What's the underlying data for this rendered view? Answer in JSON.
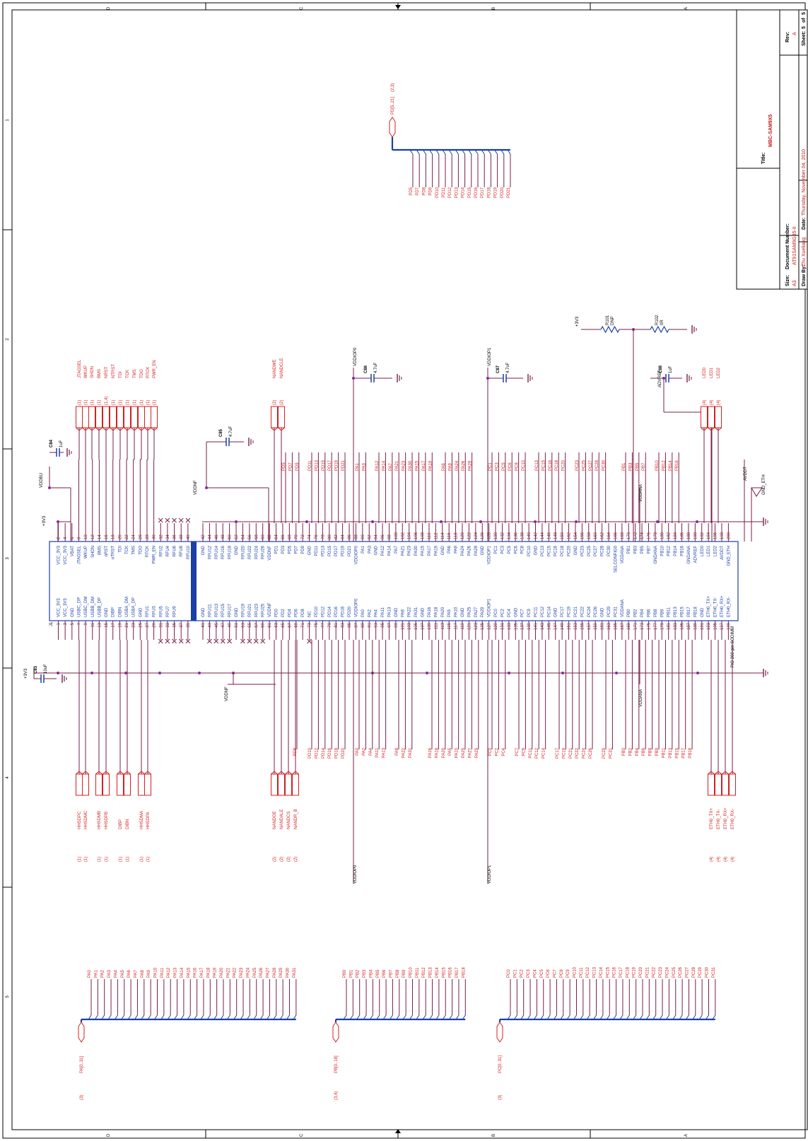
{
  "colors": {
    "frame": "#000000",
    "wire": "#7a1f4a",
    "label": "#d42020",
    "part": "#1a3fa6",
    "bus": "#1a3fa6",
    "junction": "#8a2a9a",
    "title_value": "#d42020"
  },
  "border": {
    "top_letters": [
      "D",
      "C",
      "B",
      "A"
    ],
    "bottom_letters": [
      "D",
      "C",
      "B",
      "A"
    ],
    "side_numbers": [
      "1",
      "2",
      "3",
      "4",
      "5"
    ]
  },
  "title_block": {
    "title_label": "Title:",
    "title_value": "MBC-SAM9X5",
    "size_label": "Size:",
    "size_value": "A3",
    "docnum_label": "Document Number:",
    "docnum_value": "AT91SAM9G45-II",
    "rev_label": "Rev:",
    "rev_value": "A",
    "drawby_label": "Draw By:",
    "drawby_value": "Zhu Xueliang",
    "date_label": "Date:",
    "date_value": "Thursday, November 04, 2010",
    "sheet_label": "Sheet:",
    "sheet_value": "5",
    "of_label": "of",
    "of_value": "5"
  },
  "connector": {
    "ref": "J1",
    "name": "PIO 200-pin SODIMM",
    "top_row": [
      {
        "pin": "2",
        "name": "VCC_3V3"
      },
      {
        "pin": "4",
        "name": "VCC_3V3"
      },
      {
        "pin": "6",
        "name": "VBAT"
      },
      {
        "pin": "8",
        "name": "JTAGSEL"
      },
      {
        "pin": "10",
        "name": "WKUP"
      },
      {
        "pin": "12",
        "name": "SHDN"
      },
      {
        "pin": "14",
        "name": "BMS"
      },
      {
        "pin": "16",
        "name": "nRST"
      },
      {
        "pin": "18",
        "name": "nTRST"
      },
      {
        "pin": "20",
        "name": "TDI"
      },
      {
        "pin": "22",
        "name": "TCK"
      },
      {
        "pin": "24",
        "name": "TMS"
      },
      {
        "pin": "26",
        "name": "TDO"
      },
      {
        "pin": "28",
        "name": "RTCK"
      },
      {
        "pin": "30",
        "name": "PWR_EN"
      },
      {
        "pin": "32",
        "name": "RFU2"
      },
      {
        "pin": "34",
        "name": "RFU4"
      },
      {
        "pin": "36",
        "name": "RFU6"
      },
      {
        "pin": "38",
        "name": "RFU8"
      },
      {
        "pin": "40",
        "name": "RFU10"
      },
      {
        "pin": "42",
        "name": "GND"
      },
      {
        "pin": "44",
        "name": "RFU12"
      },
      {
        "pin": "46",
        "name": "RFU14"
      },
      {
        "pin": "48",
        "name": "RFU16"
      },
      {
        "pin": "50",
        "name": "RFU18"
      },
      {
        "pin": "52",
        "name": "GND"
      },
      {
        "pin": "54",
        "name": "RFU20"
      },
      {
        "pin": "56",
        "name": "RFU22"
      },
      {
        "pin": "58",
        "name": "RFU24"
      },
      {
        "pin": "60",
        "name": "RFU26"
      },
      {
        "pin": "62",
        "name": "VDDNF"
      },
      {
        "pin": "64",
        "name": "PD1"
      },
      {
        "pin": "66",
        "name": "PD3"
      },
      {
        "pin": "68",
        "name": "PD5"
      },
      {
        "pin": "70",
        "name": "PD7"
      },
      {
        "pin": "72",
        "name": "PD9"
      },
      {
        "pin": "74",
        "name": "GND"
      },
      {
        "pin": "76",
        "name": "PD11"
      },
      {
        "pin": "78",
        "name": "PD13"
      },
      {
        "pin": "80",
        "name": "PD15"
      },
      {
        "pin": "82",
        "name": "PD17"
      },
      {
        "pin": "84",
        "name": "PD19"
      },
      {
        "pin": "86",
        "name": "PD21"
      },
      {
        "pin": "88",
        "name": "VDDIOP0"
      },
      {
        "pin": "90",
        "name": "PA1"
      },
      {
        "pin": "92",
        "name": "PA3"
      },
      {
        "pin": "94",
        "name": "GND"
      },
      {
        "pin": "96",
        "name": "PA12"
      },
      {
        "pin": "98",
        "name": "PA14"
      },
      {
        "pin": "100",
        "name": "PA7"
      },
      {
        "pin": "102",
        "name": "PA21"
      },
      {
        "pin": "104",
        "name": "PA23"
      },
      {
        "pin": "106",
        "name": "PA30"
      },
      {
        "pin": "108",
        "name": "PA15"
      },
      {
        "pin": "110",
        "name": "PA17"
      },
      {
        "pin": "112",
        "name": "PA19"
      },
      {
        "pin": "114",
        "name": "GND"
      },
      {
        "pin": "116",
        "name": "PA6"
      },
      {
        "pin": "118",
        "name": "PA9"
      },
      {
        "pin": "120",
        "name": "PA24"
      },
      {
        "pin": "122",
        "name": "PA26"
      },
      {
        "pin": "124",
        "name": "PA28"
      },
      {
        "pin": "126",
        "name": "GND"
      },
      {
        "pin": "128",
        "name": "VDDIOP1"
      },
      {
        "pin": "130",
        "name": "PC1"
      },
      {
        "pin": "132",
        "name": "PC3"
      },
      {
        "pin": "134",
        "name": "PC5"
      },
      {
        "pin": "136",
        "name": "PC6"
      },
      {
        "pin": "138",
        "name": "PC8"
      },
      {
        "pin": "140",
        "name": "PC10"
      },
      {
        "pin": "142",
        "name": "GND"
      },
      {
        "pin": "144",
        "name": "PC13"
      },
      {
        "pin": "146",
        "name": "PC15"
      },
      {
        "pin": "148",
        "name": "PC16"
      },
      {
        "pin": "150",
        "name": "PC18"
      },
      {
        "pin": "152",
        "name": "PC20"
      },
      {
        "pin": "154",
        "name": "GND"
      },
      {
        "pin": "156",
        "name": "PC23"
      },
      {
        "pin": "158",
        "name": "PC25"
      },
      {
        "pin": "160",
        "name": "PC27"
      },
      {
        "pin": "162",
        "name": "PC28"
      },
      {
        "pin": "164",
        "name": "PC30"
      },
      {
        "pin": "166",
        "name": "SELCONFIG0"
      },
      {
        "pin": "168",
        "name": "VDDANA"
      },
      {
        "pin": "170",
        "name": "PB1"
      },
      {
        "pin": "172",
        "name": "PB3"
      },
      {
        "pin": "174",
        "name": "PB5"
      },
      {
        "pin": "176",
        "name": "PB7"
      },
      {
        "pin": "178",
        "name": "GNDANA"
      },
      {
        "pin": "180",
        "name": "PB10"
      },
      {
        "pin": "182",
        "name": "PB12"
      },
      {
        "pin": "184",
        "name": "PB14"
      },
      {
        "pin": "186",
        "name": "PB16"
      },
      {
        "pin": "188",
        "name": "GNDANA"
      },
      {
        "pin": "190",
        "name": "ADVREF"
      },
      {
        "pin": "192",
        "name": "LED0"
      },
      {
        "pin": "194",
        "name": "LED1"
      },
      {
        "pin": "196",
        "name": "LED2"
      },
      {
        "pin": "198",
        "name": "AVDDT"
      },
      {
        "pin": "200",
        "name": "GND_ETH"
      }
    ],
    "bottom_row": [
      {
        "pin": "1",
        "name": "VCC_3V3"
      },
      {
        "pin": "3",
        "name": "VCC_3V3"
      },
      {
        "pin": "5",
        "name": "GND"
      },
      {
        "pin": "7",
        "name": "USBC_DP"
      },
      {
        "pin": "9",
        "name": "USBC_DM"
      },
      {
        "pin": "11",
        "name": "USBB_DM"
      },
      {
        "pin": "13",
        "name": "USBB_DP"
      },
      {
        "pin": "15",
        "name": "GND"
      },
      {
        "pin": "17",
        "name": "DIBP"
      },
      {
        "pin": "19",
        "name": "DIBN"
      },
      {
        "pin": "21",
        "name": "USBA_DM"
      },
      {
        "pin": "23",
        "name": "USBA_DP"
      },
      {
        "pin": "25",
        "name": "GND"
      },
      {
        "pin": "27",
        "name": "RFU1"
      },
      {
        "pin": "29",
        "name": "RFU3"
      },
      {
        "pin": "31",
        "name": "RFU5"
      },
      {
        "pin": "33",
        "name": "RFU7"
      },
      {
        "pin": "35",
        "name": "RFU9"
      },
      {
        "pin": "37",
        "name": ""
      },
      {
        "pin": "39",
        "name": ""
      },
      {
        "pin": "41",
        "name": "GND"
      },
      {
        "pin": "43",
        "name": "RFU11"
      },
      {
        "pin": "45",
        "name": "RFU13"
      },
      {
        "pin": "47",
        "name": "RFU15"
      },
      {
        "pin": "49",
        "name": "RFU17"
      },
      {
        "pin": "51",
        "name": "GND"
      },
      {
        "pin": "53",
        "name": "RFU19"
      },
      {
        "pin": "55",
        "name": "RFU21"
      },
      {
        "pin": "57",
        "name": "RFU23"
      },
      {
        "pin": "59",
        "name": "RFU25"
      },
      {
        "pin": "61",
        "name": "VDDNF"
      },
      {
        "pin": "63",
        "name": "PD0"
      },
      {
        "pin": "65",
        "name": "PD2"
      },
      {
        "pin": "67",
        "name": "PD4"
      },
      {
        "pin": "69",
        "name": "PD6"
      },
      {
        "pin": "71",
        "name": "PD8"
      },
      {
        "pin": "73",
        "name": "NC"
      },
      {
        "pin": "75",
        "name": "PD10"
      },
      {
        "pin": "77",
        "name": "PD12"
      },
      {
        "pin": "79",
        "name": "PD14"
      },
      {
        "pin": "81",
        "name": "PD16"
      },
      {
        "pin": "83",
        "name": "PD18"
      },
      {
        "pin": "85",
        "name": "PD20"
      },
      {
        "pin": "87",
        "name": "VDDIOP0"
      },
      {
        "pin": "89",
        "name": "PA0"
      },
      {
        "pin": "91",
        "name": "PA2"
      },
      {
        "pin": "93",
        "name": "PA4"
      },
      {
        "pin": "95",
        "name": "PA11"
      },
      {
        "pin": "97",
        "name": "PA13"
      },
      {
        "pin": "99",
        "name": "GND"
      },
      {
        "pin": "101",
        "name": "PA8"
      },
      {
        "pin": "103",
        "name": "PA22"
      },
      {
        "pin": "105",
        "name": "PA31"
      },
      {
        "pin": "107",
        "name": "GND"
      },
      {
        "pin": "109",
        "name": "PA16"
      },
      {
        "pin": "111",
        "name": "PA18"
      },
      {
        "pin": "113",
        "name": "PA20"
      },
      {
        "pin": "115",
        "name": "PA5"
      },
      {
        "pin": "117",
        "name": "PA10"
      },
      {
        "pin": "119",
        "name": "GND"
      },
      {
        "pin": "121",
        "name": "PA25"
      },
      {
        "pin": "123",
        "name": "PA27"
      },
      {
        "pin": "125",
        "name": "PA29"
      },
      {
        "pin": "127",
        "name": "VDDIOP1"
      },
      {
        "pin": "129",
        "name": "PC0"
      },
      {
        "pin": "131",
        "name": "PC2"
      },
      {
        "pin": "133",
        "name": "PC4"
      },
      {
        "pin": "135",
        "name": "GND"
      },
      {
        "pin": "137",
        "name": "PC7"
      },
      {
        "pin": "139",
        "name": "PC9"
      },
      {
        "pin": "141",
        "name": "PC11"
      },
      {
        "pin": "143",
        "name": "PC12"
      },
      {
        "pin": "145",
        "name": "PC14"
      },
      {
        "pin": "147",
        "name": "GND"
      },
      {
        "pin": "149",
        "name": "PC17"
      },
      {
        "pin": "151",
        "name": "PC19"
      },
      {
        "pin": "153",
        "name": "PC21"
      },
      {
        "pin": "155",
        "name": "PC22"
      },
      {
        "pin": "157",
        "name": "PC24"
      },
      {
        "pin": "159",
        "name": "PC26"
      },
      {
        "pin": "161",
        "name": "GND"
      },
      {
        "pin": "163",
        "name": "PC29"
      },
      {
        "pin": "165",
        "name": "PC31"
      },
      {
        "pin": "167",
        "name": "VDDANA"
      },
      {
        "pin": "169",
        "name": "PB0"
      },
      {
        "pin": "171",
        "name": "PB2"
      },
      {
        "pin": "173",
        "name": "PB4"
      },
      {
        "pin": "175",
        "name": "PB6"
      },
      {
        "pin": "177",
        "name": "PB8"
      },
      {
        "pin": "179",
        "name": "PB9"
      },
      {
        "pin": "181",
        "name": "PB11"
      },
      {
        "pin": "183",
        "name": "PB13"
      },
      {
        "pin": "185",
        "name": "PB15"
      },
      {
        "pin": "187",
        "name": "PB17"
      },
      {
        "pin": "189",
        "name": "PB18"
      },
      {
        "pin": "191",
        "name": "GND"
      },
      {
        "pin": "193",
        "name": "ETH0_TX+"
      },
      {
        "pin": "195",
        "name": "ETH0_TX-"
      },
      {
        "pin": "197",
        "name": "ETH0_RX+"
      },
      {
        "pin": "199",
        "name": "ETH0_RX-"
      }
    ]
  },
  "top_ports": [
    {
      "name": "JTAGSEL",
      "ref": "(1)"
    },
    {
      "name": "WKUP",
      "ref": "(1)"
    },
    {
      "name": "SHDN",
      "ref": "(1)"
    },
    {
      "name": "BMS",
      "ref": "(1)"
    },
    {
      "name": "NRST",
      "ref": "(1,4)"
    },
    {
      "name": "NTRST",
      "ref": "(1)"
    },
    {
      "name": "TDI",
      "ref": "(1)"
    },
    {
      "name": "TCK",
      "ref": "(1)"
    },
    {
      "name": "TMS",
      "ref": "(1)"
    },
    {
      "name": "TDO",
      "ref": "(1)"
    },
    {
      "name": "RTCK",
      "ref": "(1)"
    },
    {
      "name": "PWR_EN",
      "ref": "(1)"
    }
  ],
  "nand_top_ports": [
    {
      "name": "NANDWE",
      "ref": "(2)"
    },
    {
      "name": "NANDCLE",
      "ref": "(2)"
    }
  ],
  "led_ports": [
    {
      "name": "LED0",
      "ref": "(4)"
    },
    {
      "name": "LED1",
      "ref": "(4)"
    },
    {
      "name": "LED2",
      "ref": "(4)"
    }
  ],
  "usb_ports": [
    {
      "name": "HHSDPC",
      "ref": "(1)"
    },
    {
      "name": "HHSDMC",
      "ref": "(1)"
    },
    {
      "name": "HHSDMB",
      "ref": "(1)"
    },
    {
      "name": "HHSDPB",
      "ref": "(1)"
    },
    {
      "name": "DIBP",
      "ref": "(1)"
    },
    {
      "name": "DIBN",
      "ref": "(1)"
    },
    {
      "name": "HHSDMA",
      "ref": "(1)"
    },
    {
      "name": "HHSDPA",
      "ref": "(1)"
    }
  ],
  "nand_bottom_ports": [
    {
      "name": "NANDOE",
      "ref": "(2)"
    },
    {
      "name": "NANDALE",
      "ref": "(2)"
    },
    {
      "name": "NANDCS",
      "ref": "(2)"
    },
    {
      "name": "NANDR_B",
      "ref": "(2)"
    }
  ],
  "eth_ports": [
    {
      "name": "ETH0_TX+",
      "ref": "(4)"
    },
    {
      "name": "ETH0_TX-",
      "ref": "(4)"
    },
    {
      "name": "ETH0_RX+",
      "ref": "(4)"
    },
    {
      "name": "ETH0_RX-",
      "ref": "(4)"
    }
  ],
  "capacitors": [
    {
      "ref": "C84",
      "value": "1uF"
    },
    {
      "ref": "C83",
      "value": "10uF"
    },
    {
      "ref": "C85",
      "value": "4.7uF"
    },
    {
      "ref": "C86",
      "value": "4.7uF"
    },
    {
      "ref": "C87",
      "value": "4.7uF"
    },
    {
      "ref": "C88",
      "value": "1uF"
    }
  ],
  "resistors": [
    {
      "ref": "R101",
      "value": "DNP"
    },
    {
      "ref": "R102",
      "value": "0R"
    }
  ],
  "nets": {
    "vddbu": "VDDBU",
    "p3v3": "+3V3",
    "vddnf": "VDDNF",
    "vddiop0": "VDDIOP0",
    "vddiop1": "VDDIOP1",
    "vddana": "VDDANA",
    "advref": "ADVREF",
    "avddt": "AVDDT",
    "gnd_eth": "GND_ETH"
  },
  "buses": {
    "pd": {
      "port": "PD[5..21]",
      "ref": "(2,3)",
      "members": [
        "PD5",
        "PD7",
        "PD8",
        "PD9",
        "PD10",
        "PD11",
        "PD12",
        "PD13",
        "PD14",
        "PD15",
        "PD16",
        "PD17",
        "PD18",
        "PD19",
        "PD20",
        "PD21"
      ]
    },
    "pa": {
      "port": "PA[0..31]",
      "ref": "(3)",
      "members": [
        "PA0",
        "PA1",
        "PA2",
        "PA3",
        "PA4",
        "PA5",
        "PA6",
        "PA7",
        "PA8",
        "PA9",
        "PA10",
        "PA11",
        "PA12",
        "PA13",
        "PA14",
        "PA15",
        "PA16",
        "PA17",
        "PA18",
        "PA19",
        "PA20",
        "PA21",
        "PA22",
        "PA23",
        "PA24",
        "PA25",
        "PA26",
        "PA27",
        "PA28",
        "PA29",
        "PA30",
        "PA31"
      ]
    },
    "pb": {
      "port": "PB[0..18]",
      "ref": "(3,4)",
      "members": [
        "PB0",
        "PB1",
        "PB2",
        "PB3",
        "PB4",
        "PB5",
        "PB6",
        "PB7",
        "PB8",
        "PB9",
        "PB10",
        "PB11",
        "PB12",
        "PB13",
        "PB14",
        "PB15",
        "PB16",
        "PB17",
        "PB18"
      ]
    },
    "pc": {
      "port": "PC[0..31]",
      "ref": "(3)",
      "members": [
        "PC0",
        "PC1",
        "PC2",
        "PC3",
        "PC4",
        "PC5",
        "PC6",
        "PC7",
        "PC8",
        "PC9",
        "PC10",
        "PC11",
        "PC12",
        "PC13",
        "PC14",
        "PC15",
        "PC16",
        "PC17",
        "PC18",
        "PC19",
        "PC20",
        "PC21",
        "PC22",
        "PC23",
        "PC24",
        "PC25",
        "PC26",
        "PC27",
        "PC28",
        "PC29",
        "PC30",
        "PC31"
      ]
    }
  },
  "net_labels": {
    "pd_top": [
      "PD5",
      "PD7",
      "PD9"
    ],
    "pd_top2": [
      "PD11",
      "PD13",
      "PD15",
      "PD17",
      "PD19",
      "PD21"
    ],
    "pa_top": [
      "PA1",
      "PA3"
    ],
    "pa_top2": [
      "PA12",
      "PA14",
      "PA7",
      "PA21",
      "PA23",
      "PA30",
      "PA15",
      "PA17",
      "PA19"
    ],
    "pa_top3": [
      "PA6",
      "PA9",
      "PA24",
      "PA26",
      "PA28"
    ],
    "pc_top": [
      "PC1",
      "PC3",
      "PC5",
      "PC6",
      "PC8",
      "PC10"
    ],
    "pc_top2": [
      "PC13",
      "PC15",
      "PC16",
      "PC18",
      "PC20"
    ],
    "pc_top3": [
      "PC23",
      "PC25",
      "PC27",
      "PC28",
      "PC30"
    ],
    "pb_top": [
      "PB1",
      "PB3",
      "PB5",
      "PB7"
    ],
    "pb_top2": [
      "PB10",
      "PB12",
      "PB14",
      "PB16"
    ],
    "pd_bot": [
      "PD8"
    ],
    "pd_bot2": [
      "PD10",
      "PD12",
      "PD14",
      "PD16",
      "PD18",
      "PD20"
    ],
    "pa_bot": [
      "PA0",
      "PA2",
      "PA4",
      "PA11",
      "PA13"
    ],
    "pa_bot2": [
      "PA8",
      "PA22",
      "PA31"
    ],
    "pa_bot3": [
      "PA16",
      "PA18",
      "PA20",
      "PA5",
      "PA10"
    ],
    "pa_bot4": [
      "PA25",
      "PA27",
      "PA29"
    ],
    "pc_bot": [
      "PC0",
      "PC2",
      "PC4"
    ],
    "pc_bot2": [
      "PC7",
      "PC9",
      "PC11",
      "PC12",
      "PC14"
    ],
    "pc_bot3": [
      "PC17",
      "PC19",
      "PC21",
      "PC22",
      "PC24",
      "PC26"
    ],
    "pc_bot4": [
      "PC29",
      "PC31"
    ],
    "pb_bot": [
      "PB0",
      "PB2",
      "PB4",
      "PB6",
      "PB8",
      "PB9",
      "PB11",
      "PB13",
      "PB15",
      "PB17",
      "PB18"
    ]
  }
}
